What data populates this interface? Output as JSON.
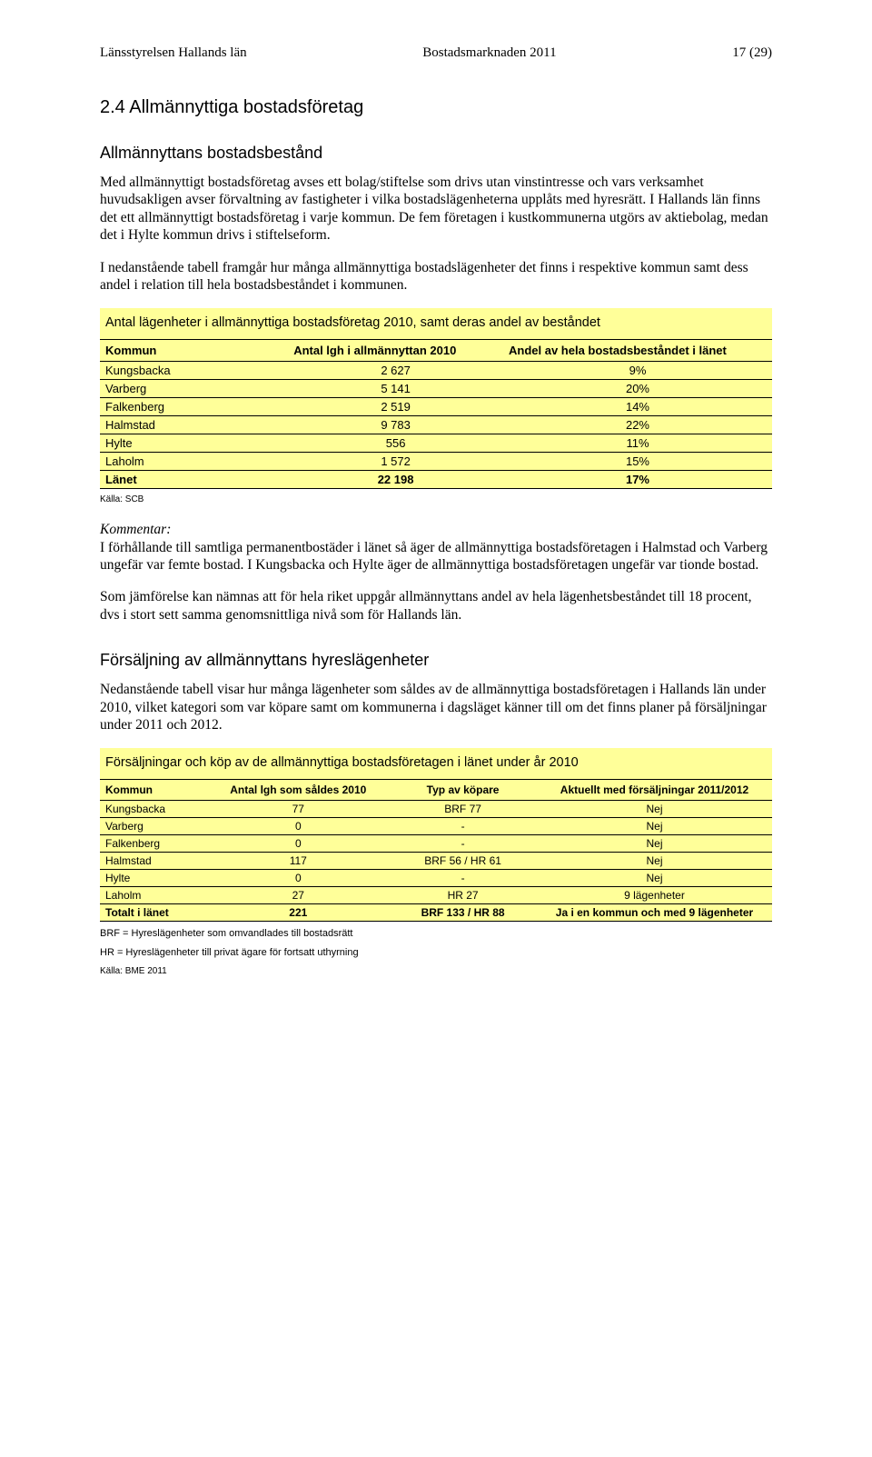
{
  "header": {
    "left": "Länsstyrelsen Hallands län",
    "center": "Bostadsmarknaden 2011",
    "right": "17 (29)"
  },
  "section_number_title": "2.4 Allmännyttiga bostadsföretag",
  "subheading1": "Allmännyttans bostadsbestånd",
  "para1": "Med allmännyttigt bostadsföretag avses ett bolag/stiftelse som drivs utan vinstintresse och vars verksamhet huvudsakligen avser förvaltning av fastigheter i vilka bostadslägenheterna upplåts med hyresrätt. I Hallands län finns det ett allmännyttigt bostadsföretag i varje kommun. De fem företagen i kustkommunerna utgörs av aktiebolag, medan det i Hylte kommun drivs i stiftelseform.",
  "para2": "I nedanstående tabell framgår hur många allmännyttiga bostadslägenheter det finns i respektive kommun samt dess andel i relation till hela bostadsbeståndet i kommunen.",
  "table1": {
    "title": "Antal lägenheter i allmännyttiga bostadsföretag 2010, samt deras andel av beståndet",
    "columns": [
      "Kommun",
      "Antal lgh i allmännyttan 2010",
      "Andel av hela bostadsbeståndet i länet"
    ],
    "rows": [
      [
        "Kungsbacka",
        "2 627",
        "9%"
      ],
      [
        "Varberg",
        "5 141",
        "20%"
      ],
      [
        "Falkenberg",
        "2 519",
        "14%"
      ],
      [
        "Halmstad",
        "9 783",
        "22%"
      ],
      [
        "Hylte",
        "556",
        "11%"
      ],
      [
        "Laholm",
        "1 572",
        "15%"
      ]
    ],
    "total_row": [
      "Länet",
      "22 198",
      "17%"
    ],
    "source": "Källa: SCB",
    "bg_color": "#ffff99",
    "border_color": "#000000",
    "col_widths": [
      "28%",
      "32%",
      "40%"
    ],
    "header_fontsize": 13,
    "cell_fontsize": 13
  },
  "kommentar_label": "Kommentar:",
  "para3": "I förhållande till samtliga permanentbostäder i länet så äger de allmännyttiga bostadsföretagen i Halmstad och Varberg ungefär var femte bostad. I Kungsbacka och Hylte äger de allmännyttiga bostadsföretagen ungefär var tionde bostad.",
  "para4": "Som jämförelse kan nämnas att för hela riket uppgår allmännyttans andel av hela lägenhetsbeståndet till 18 procent, dvs i stort sett samma genomsnittliga nivå som för Hallands län.",
  "subheading2": "Försäljning av allmännyttans hyreslägenheter",
  "para5": "Nedanstående tabell visar hur många lägenheter som såldes av de allmännyttiga bostadsföretagen i Hallands län under 2010, vilket kategori som var köpare samt om kommunerna i dagsläget känner till om det finns planer på försäljningar under 2011 och 2012.",
  "table2": {
    "title": "Försäljningar och köp av de allmännyttiga bostadsföretagen i länet under år 2010",
    "columns": [
      "Kommun",
      "Antal lgh som såldes 2010",
      "Typ av köpare",
      "Aktuellt med försäljningar 2011/2012"
    ],
    "rows": [
      [
        "Kungsbacka",
        "77",
        "BRF 77",
        "Nej"
      ],
      [
        "Varberg",
        "0",
        "-",
        "Nej"
      ],
      [
        "Falkenberg",
        "0",
        "-",
        "Nej"
      ],
      [
        "Halmstad",
        "117",
        "BRF 56   /   HR 61",
        "Nej"
      ],
      [
        "Hylte",
        "0",
        "-",
        "Nej"
      ],
      [
        "Laholm",
        "27",
        "HR 27",
        "9 lägenheter"
      ]
    ],
    "total_row": [
      "Totalt i länet",
      "221",
      "BRF 133   /   HR 88",
      "Ja i en kommun och med 9 lägenheter"
    ],
    "footnote1": "BRF = Hyreslägenheter som omvandlades till bostadsrätt",
    "footnote2": "HR = Hyreslägenheter till privat ägare för fortsatt uthyrning",
    "source": "Källa: BME 2011",
    "bg_color": "#ffff99",
    "border_color": "#000000",
    "col_widths": [
      "16%",
      "27%",
      "22%",
      "35%"
    ],
    "header_fontsize": 12,
    "cell_fontsize": 12
  }
}
